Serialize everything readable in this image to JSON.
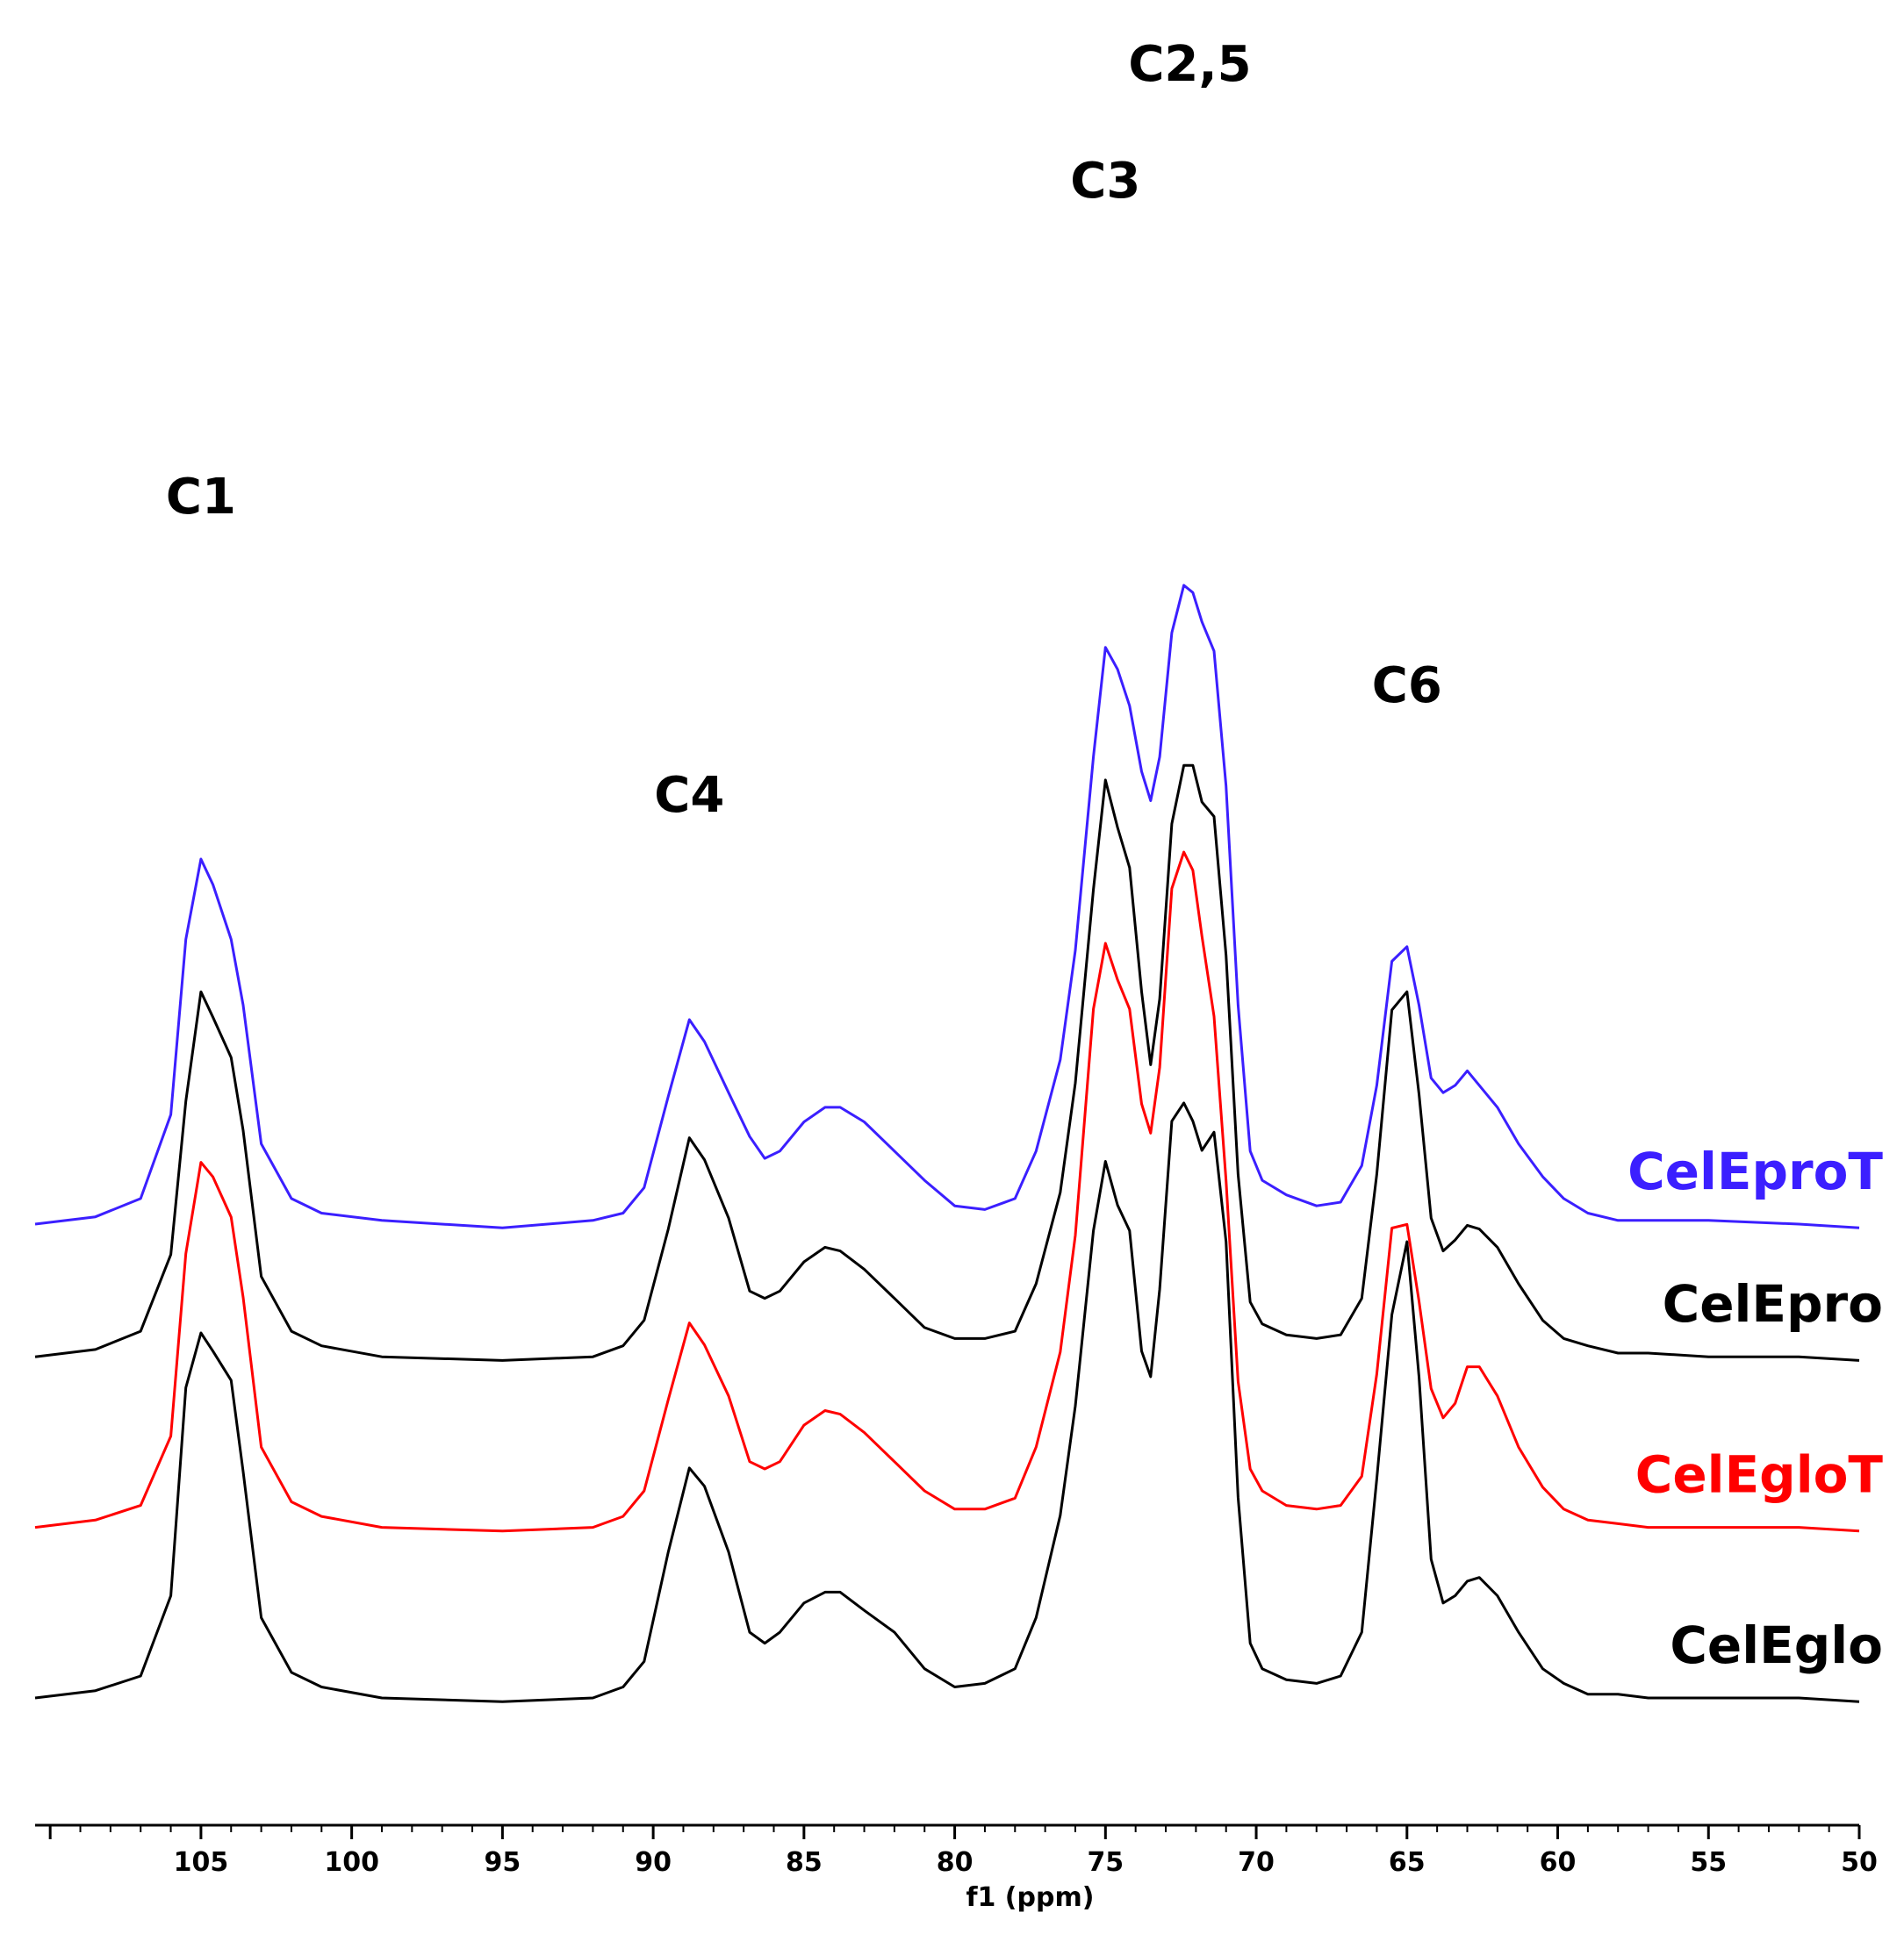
{
  "chart_data": {
    "type": "line",
    "xlabel": "f1 (ppm)",
    "ylabel": "",
    "xlim": [
      110.5,
      50
    ],
    "x_reversed": true,
    "grid": false,
    "x_ticks": [
      105,
      100,
      95,
      90,
      85,
      80,
      75,
      70,
      65,
      60,
      55,
      50
    ],
    "peak_annotations": [
      {
        "label": "C1",
        "ppm": 105
      },
      {
        "label": "C4",
        "ppm": 88.8
      },
      {
        "label": "C3",
        "ppm": 75
      },
      {
        "label": "C2,5",
        "ppm": 72.2
      },
      {
        "label": "C6",
        "ppm": 65
      }
    ],
    "series": [
      {
        "name": "CelEproT",
        "color": "#3b1fff",
        "offset": 1.0,
        "points": [
          [
            110.5,
            0.0
          ],
          [
            108.5,
            0.02
          ],
          [
            107.0,
            0.07
          ],
          [
            106.0,
            0.3
          ],
          [
            105.5,
            0.78
          ],
          [
            105.0,
            1.0
          ],
          [
            104.6,
            0.93
          ],
          [
            104.0,
            0.78
          ],
          [
            103.6,
            0.6
          ],
          [
            103.0,
            0.22
          ],
          [
            102.0,
            0.07
          ],
          [
            101.0,
            0.03
          ],
          [
            99.0,
            0.01
          ],
          [
            95.0,
            -0.01
          ],
          [
            92.0,
            0.01
          ],
          [
            91.0,
            0.03
          ],
          [
            90.3,
            0.1
          ],
          [
            89.5,
            0.35
          ],
          [
            88.8,
            0.56
          ],
          [
            88.3,
            0.5
          ],
          [
            87.5,
            0.36
          ],
          [
            86.8,
            0.24
          ],
          [
            86.3,
            0.18
          ],
          [
            85.8,
            0.2
          ],
          [
            85.0,
            0.28
          ],
          [
            84.3,
            0.32
          ],
          [
            83.8,
            0.32
          ],
          [
            83.0,
            0.28
          ],
          [
            82.0,
            0.2
          ],
          [
            81.0,
            0.12
          ],
          [
            80.0,
            0.05
          ],
          [
            79.0,
            0.04
          ],
          [
            78.0,
            0.07
          ],
          [
            77.3,
            0.2
          ],
          [
            76.5,
            0.45
          ],
          [
            76.0,
            0.75
          ],
          [
            75.4,
            1.28
          ],
          [
            75.0,
            1.58
          ],
          [
            74.6,
            1.52
          ],
          [
            74.2,
            1.42
          ],
          [
            73.8,
            1.24
          ],
          [
            73.5,
            1.16
          ],
          [
            73.2,
            1.28
          ],
          [
            72.8,
            1.62
          ],
          [
            72.4,
            1.75
          ],
          [
            72.1,
            1.73
          ],
          [
            71.8,
            1.65
          ],
          [
            71.4,
            1.57
          ],
          [
            71.0,
            1.2
          ],
          [
            70.6,
            0.6
          ],
          [
            70.2,
            0.2
          ],
          [
            69.8,
            0.12
          ],
          [
            69.0,
            0.08
          ],
          [
            68.0,
            0.05
          ],
          [
            67.2,
            0.06
          ],
          [
            66.5,
            0.16
          ],
          [
            66.0,
            0.38
          ],
          [
            65.5,
            0.72
          ],
          [
            65.0,
            0.76
          ],
          [
            64.6,
            0.6
          ],
          [
            64.2,
            0.4
          ],
          [
            63.8,
            0.36
          ],
          [
            63.4,
            0.38
          ],
          [
            63.0,
            0.42
          ],
          [
            62.6,
            0.38
          ],
          [
            62.0,
            0.32
          ],
          [
            61.3,
            0.22
          ],
          [
            60.5,
            0.13
          ],
          [
            59.8,
            0.07
          ],
          [
            59.0,
            0.03
          ],
          [
            58.0,
            0.01
          ],
          [
            57.0,
            0.01
          ],
          [
            55.0,
            0.01
          ],
          [
            52.0,
            0.0
          ],
          [
            50.0,
            -0.01
          ]
        ]
      },
      {
        "name": "CelEpro",
        "color": "#000000",
        "offset": 0.72,
        "points": [
          [
            110.5,
            0.0
          ],
          [
            108.5,
            0.02
          ],
          [
            107.0,
            0.07
          ],
          [
            106.0,
            0.28
          ],
          [
            105.5,
            0.7
          ],
          [
            105.0,
            1.0
          ],
          [
            104.6,
            0.93
          ],
          [
            104.0,
            0.82
          ],
          [
            103.6,
            0.62
          ],
          [
            103.0,
            0.22
          ],
          [
            102.0,
            0.07
          ],
          [
            101.0,
            0.03
          ],
          [
            99.0,
            0.0
          ],
          [
            95.0,
            -0.01
          ],
          [
            92.0,
            0.0
          ],
          [
            91.0,
            0.03
          ],
          [
            90.3,
            0.1
          ],
          [
            89.5,
            0.35
          ],
          [
            88.8,
            0.6
          ],
          [
            88.3,
            0.54
          ],
          [
            87.5,
            0.38
          ],
          [
            86.8,
            0.18
          ],
          [
            86.3,
            0.16
          ],
          [
            85.8,
            0.18
          ],
          [
            85.0,
            0.26
          ],
          [
            84.3,
            0.3
          ],
          [
            83.8,
            0.29
          ],
          [
            83.0,
            0.24
          ],
          [
            82.0,
            0.16
          ],
          [
            81.0,
            0.08
          ],
          [
            80.0,
            0.05
          ],
          [
            79.0,
            0.05
          ],
          [
            78.0,
            0.07
          ],
          [
            77.3,
            0.2
          ],
          [
            76.5,
            0.45
          ],
          [
            76.0,
            0.75
          ],
          [
            75.4,
            1.28
          ],
          [
            75.0,
            1.58
          ],
          [
            74.6,
            1.45
          ],
          [
            74.2,
            1.34
          ],
          [
            73.8,
            1.0
          ],
          [
            73.5,
            0.8
          ],
          [
            73.2,
            0.98
          ],
          [
            72.8,
            1.46
          ],
          [
            72.4,
            1.62
          ],
          [
            72.1,
            1.62
          ],
          [
            71.8,
            1.52
          ],
          [
            71.4,
            1.48
          ],
          [
            71.0,
            1.1
          ],
          [
            70.6,
            0.5
          ],
          [
            70.2,
            0.15
          ],
          [
            69.8,
            0.09
          ],
          [
            69.0,
            0.06
          ],
          [
            68.0,
            0.05
          ],
          [
            67.2,
            0.06
          ],
          [
            66.5,
            0.16
          ],
          [
            66.0,
            0.5
          ],
          [
            65.5,
            0.95
          ],
          [
            65.0,
            1.0
          ],
          [
            64.6,
            0.72
          ],
          [
            64.2,
            0.38
          ],
          [
            63.8,
            0.29
          ],
          [
            63.4,
            0.32
          ],
          [
            63.0,
            0.36
          ],
          [
            62.6,
            0.35
          ],
          [
            62.0,
            0.3
          ],
          [
            61.3,
            0.2
          ],
          [
            60.5,
            0.1
          ],
          [
            59.8,
            0.05
          ],
          [
            59.0,
            0.03
          ],
          [
            58.0,
            0.01
          ],
          [
            57.0,
            0.01
          ],
          [
            55.0,
            0.0
          ],
          [
            52.0,
            0.0
          ],
          [
            50.0,
            -0.01
          ]
        ]
      },
      {
        "name": "CelEgloT",
        "color": "#ff0000",
        "offset": 0.36,
        "points": [
          [
            110.5,
            0.0
          ],
          [
            108.5,
            0.02
          ],
          [
            107.0,
            0.06
          ],
          [
            106.0,
            0.25
          ],
          [
            105.5,
            0.75
          ],
          [
            105.0,
            1.0
          ],
          [
            104.6,
            0.96
          ],
          [
            104.0,
            0.85
          ],
          [
            103.6,
            0.63
          ],
          [
            103.0,
            0.22
          ],
          [
            102.0,
            0.07
          ],
          [
            101.0,
            0.03
          ],
          [
            99.0,
            0.0
          ],
          [
            95.0,
            -0.01
          ],
          [
            92.0,
            0.0
          ],
          [
            91.0,
            0.03
          ],
          [
            90.3,
            0.1
          ],
          [
            89.5,
            0.35
          ],
          [
            88.8,
            0.56
          ],
          [
            88.3,
            0.5
          ],
          [
            87.5,
            0.36
          ],
          [
            86.8,
            0.18
          ],
          [
            86.3,
            0.16
          ],
          [
            85.8,
            0.18
          ],
          [
            85.0,
            0.28
          ],
          [
            84.3,
            0.32
          ],
          [
            83.8,
            0.31
          ],
          [
            83.0,
            0.26
          ],
          [
            82.0,
            0.18
          ],
          [
            81.0,
            0.1
          ],
          [
            80.0,
            0.05
          ],
          [
            79.0,
            0.05
          ],
          [
            78.0,
            0.08
          ],
          [
            77.3,
            0.22
          ],
          [
            76.5,
            0.48
          ],
          [
            76.0,
            0.8
          ],
          [
            75.4,
            1.42
          ],
          [
            75.0,
            1.6
          ],
          [
            74.6,
            1.5
          ],
          [
            74.2,
            1.42
          ],
          [
            73.8,
            1.16
          ],
          [
            73.5,
            1.08
          ],
          [
            73.2,
            1.26
          ],
          [
            72.8,
            1.75
          ],
          [
            72.4,
            1.85
          ],
          [
            72.1,
            1.8
          ],
          [
            71.8,
            1.62
          ],
          [
            71.4,
            1.4
          ],
          [
            71.0,
            0.95
          ],
          [
            70.6,
            0.4
          ],
          [
            70.2,
            0.16
          ],
          [
            69.8,
            0.1
          ],
          [
            69.0,
            0.06
          ],
          [
            68.0,
            0.05
          ],
          [
            67.2,
            0.06
          ],
          [
            66.5,
            0.14
          ],
          [
            66.0,
            0.42
          ],
          [
            65.5,
            0.82
          ],
          [
            65.0,
            0.83
          ],
          [
            64.6,
            0.62
          ],
          [
            64.2,
            0.38
          ],
          [
            63.8,
            0.3
          ],
          [
            63.4,
            0.34
          ],
          [
            63.0,
            0.44
          ],
          [
            62.6,
            0.44
          ],
          [
            62.0,
            0.36
          ],
          [
            61.3,
            0.22
          ],
          [
            60.5,
            0.11
          ],
          [
            59.8,
            0.05
          ],
          [
            59.0,
            0.02
          ],
          [
            58.0,
            0.01
          ],
          [
            57.0,
            0.0
          ],
          [
            55.0,
            0.0
          ],
          [
            52.0,
            0.0
          ],
          [
            50.0,
            -0.01
          ]
        ]
      },
      {
        "name": "CelEglo",
        "color": "#000000",
        "offset": 0.0,
        "points": [
          [
            110.5,
            0.0
          ],
          [
            108.5,
            0.02
          ],
          [
            107.0,
            0.06
          ],
          [
            106.0,
            0.28
          ],
          [
            105.5,
            0.85
          ],
          [
            105.0,
            1.0
          ],
          [
            104.6,
            0.95
          ],
          [
            104.0,
            0.87
          ],
          [
            103.6,
            0.62
          ],
          [
            103.0,
            0.22
          ],
          [
            102.0,
            0.07
          ],
          [
            101.0,
            0.03
          ],
          [
            99.0,
            0.0
          ],
          [
            95.0,
            -0.01
          ],
          [
            92.0,
            0.0
          ],
          [
            91.0,
            0.03
          ],
          [
            90.3,
            0.1
          ],
          [
            89.5,
            0.4
          ],
          [
            88.8,
            0.63
          ],
          [
            88.3,
            0.58
          ],
          [
            87.5,
            0.4
          ],
          [
            86.8,
            0.18
          ],
          [
            86.3,
            0.15
          ],
          [
            85.8,
            0.18
          ],
          [
            85.0,
            0.26
          ],
          [
            84.3,
            0.29
          ],
          [
            83.8,
            0.29
          ],
          [
            83.0,
            0.24
          ],
          [
            82.0,
            0.18
          ],
          [
            81.0,
            0.08
          ],
          [
            80.0,
            0.03
          ],
          [
            79.0,
            0.04
          ],
          [
            78.0,
            0.08
          ],
          [
            77.3,
            0.22
          ],
          [
            76.5,
            0.5
          ],
          [
            76.0,
            0.8
          ],
          [
            75.4,
            1.28
          ],
          [
            75.0,
            1.47
          ],
          [
            74.6,
            1.35
          ],
          [
            74.2,
            1.28
          ],
          [
            73.8,
            0.95
          ],
          [
            73.5,
            0.88
          ],
          [
            73.2,
            1.12
          ],
          [
            72.8,
            1.58
          ],
          [
            72.4,
            1.63
          ],
          [
            72.1,
            1.58
          ],
          [
            71.8,
            1.5
          ],
          [
            71.4,
            1.55
          ],
          [
            71.0,
            1.25
          ],
          [
            70.6,
            0.55
          ],
          [
            70.2,
            0.15
          ],
          [
            69.8,
            0.08
          ],
          [
            69.0,
            0.05
          ],
          [
            68.0,
            0.04
          ],
          [
            67.2,
            0.06
          ],
          [
            66.5,
            0.18
          ],
          [
            66.0,
            0.6
          ],
          [
            65.5,
            1.05
          ],
          [
            65.0,
            1.25
          ],
          [
            64.6,
            0.88
          ],
          [
            64.2,
            0.38
          ],
          [
            63.8,
            0.26
          ],
          [
            63.4,
            0.28
          ],
          [
            63.0,
            0.32
          ],
          [
            62.6,
            0.33
          ],
          [
            62.0,
            0.28
          ],
          [
            61.3,
            0.18
          ],
          [
            60.5,
            0.08
          ],
          [
            59.8,
            0.04
          ],
          [
            59.0,
            0.01
          ],
          [
            58.0,
            0.01
          ],
          [
            57.0,
            0.0
          ],
          [
            55.0,
            0.0
          ],
          [
            52.0,
            0.0
          ],
          [
            50.0,
            -0.01
          ]
        ]
      }
    ]
  }
}
